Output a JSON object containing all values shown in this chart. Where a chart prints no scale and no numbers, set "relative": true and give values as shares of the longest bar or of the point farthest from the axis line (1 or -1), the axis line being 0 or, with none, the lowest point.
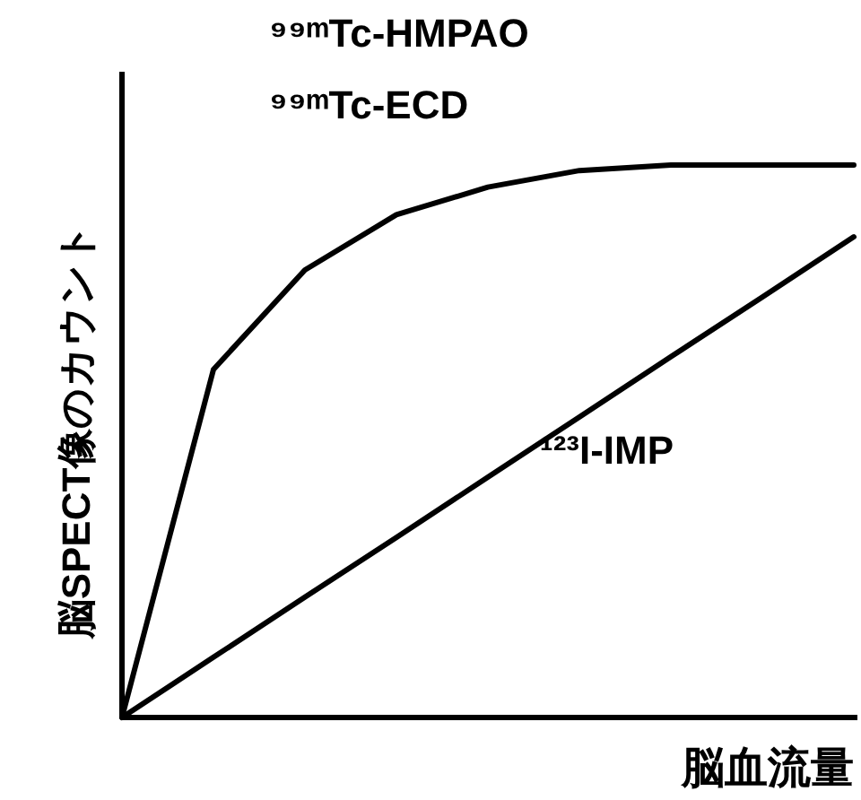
{
  "chart_data": {
    "type": "line",
    "relative": true,
    "xlabel": "脳血流量",
    "ylabel": "脳SPECT像のカウント",
    "categories": [
      null,
      null,
      null,
      null,
      null,
      null,
      null,
      null,
      null
    ],
    "series": [
      {
        "color": "#000000",
        "values": [
          0,
          0.63,
          0.81,
          0.91,
          0.96,
          0.99,
          1,
          1,
          1
        ]
      },
      {
        "name": "¹²³I-IMP",
        "color": "#000000",
        "values": [
          0,
          0.109,
          0.218,
          0.326,
          0.435,
          0.544,
          0.653,
          0.761,
          0.87
        ]
      }
    ],
    "annotations": [
      "⁹⁹ᵐTc-HMPAO",
      "⁹⁹ᵐTc-ECD"
    ]
  }
}
